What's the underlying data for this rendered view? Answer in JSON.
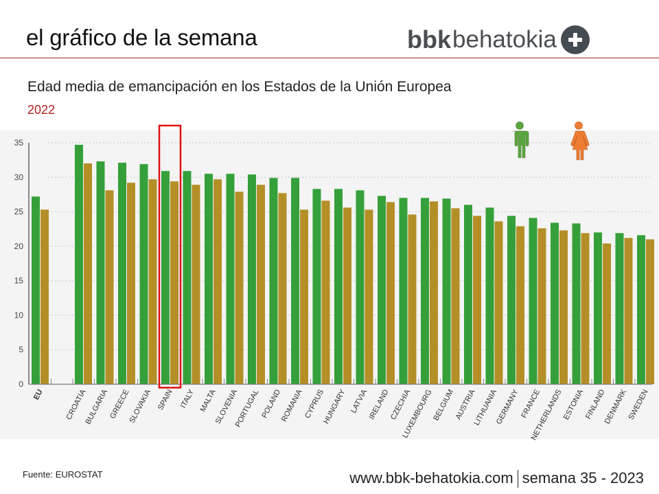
{
  "header": {
    "title": "el gráfico de la semana",
    "logo_bold": "bbk",
    "logo_light": "behatokia",
    "logo_icon": "plus-circle-icon"
  },
  "subtitle": "Edad media de emancipación en los Estados de la Unión Europea",
  "year": "2022",
  "source": "Fuente: EUROSTAT",
  "footer": {
    "url": "www.bbk-behatokia.com",
    "week": "semana 35 - 2023"
  },
  "colors": {
    "men": "#35a03a",
    "women": "#b48f27",
    "highlight": "#e01010",
    "accent_line": "#a5282a",
    "men_icon": "#5aa540",
    "women_icon": "#ee7d33"
  },
  "legend": [
    {
      "name": "men",
      "icon": "male-figure-icon"
    },
    {
      "name": "women",
      "icon": "female-figure-icon"
    }
  ],
  "highlighted_category": "SPAIN",
  "chart_data": {
    "type": "bar",
    "title": "Edad media de emancipación en los Estados de la Unión Europea",
    "subtitle": "2022",
    "xlabel": "",
    "ylabel": "",
    "ylim": [
      0,
      35
    ],
    "yticks": [
      0,
      5,
      10,
      15,
      20,
      25,
      30,
      35
    ],
    "grid": true,
    "legend": "top-right",
    "categories": [
      "EU",
      "",
      "CROATIA",
      "BULGARIA",
      "GREECE",
      "SLOVAKIA",
      "SPAIN",
      "ITALY",
      "MALTA",
      "SLOVENIA",
      "PORTUGAL",
      "POLAND",
      "ROMANIA",
      "CYPRUS",
      "HUNGARY",
      "LATVIA",
      "IRELAND",
      "CZECHIA",
      "LUXEMBOURG",
      "BELGIUM",
      "AUSTRIA",
      "LITHUANIA",
      "GERMANY",
      "FRANCE",
      "NETHERLANDS",
      "ESTONIA",
      "FINLAND",
      "DENMARK",
      "SWEDEN"
    ],
    "series": [
      {
        "name": "Hombres",
        "values": [
          27.2,
          null,
          34.7,
          32.3,
          32.1,
          31.9,
          30.9,
          30.9,
          30.5,
          30.5,
          30.4,
          29.9,
          29.9,
          28.3,
          28.3,
          28.1,
          27.3,
          27.0,
          27.0,
          26.9,
          26.0,
          25.6,
          24.4,
          24.1,
          23.4,
          23.3,
          22.0,
          21.9,
          21.6
        ]
      },
      {
        "name": "Mujeres",
        "values": [
          25.3,
          null,
          32.0,
          28.1,
          29.2,
          29.7,
          29.4,
          28.9,
          29.7,
          27.9,
          28.9,
          27.7,
          25.3,
          26.6,
          25.6,
          25.3,
          26.4,
          24.6,
          26.5,
          25.5,
          24.4,
          23.6,
          22.9,
          22.6,
          22.3,
          21.9,
          20.4,
          21.2,
          21.0
        ]
      }
    ]
  }
}
